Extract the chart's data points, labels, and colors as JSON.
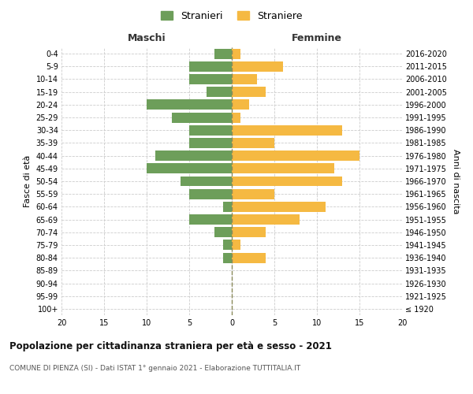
{
  "age_groups": [
    "100+",
    "95-99",
    "90-94",
    "85-89",
    "80-84",
    "75-79",
    "70-74",
    "65-69",
    "60-64",
    "55-59",
    "50-54",
    "45-49",
    "40-44",
    "35-39",
    "30-34",
    "25-29",
    "20-24",
    "15-19",
    "10-14",
    "5-9",
    "0-4"
  ],
  "birth_years": [
    "≤ 1920",
    "1921-1925",
    "1926-1930",
    "1931-1935",
    "1936-1940",
    "1941-1945",
    "1946-1950",
    "1951-1955",
    "1956-1960",
    "1961-1965",
    "1966-1970",
    "1971-1975",
    "1976-1980",
    "1981-1985",
    "1986-1990",
    "1991-1995",
    "1996-2000",
    "2001-2005",
    "2006-2010",
    "2011-2015",
    "2016-2020"
  ],
  "males": [
    0,
    0,
    0,
    0,
    1,
    1,
    2,
    5,
    1,
    5,
    6,
    10,
    9,
    5,
    5,
    7,
    10,
    3,
    5,
    5,
    2
  ],
  "females": [
    0,
    0,
    0,
    0,
    4,
    1,
    4,
    8,
    11,
    5,
    13,
    12,
    15,
    5,
    13,
    1,
    2,
    4,
    3,
    6,
    1
  ],
  "male_color": "#6d9e5a",
  "female_color": "#f5b942",
  "center_line_color": "#8a8a5a",
  "grid_color": "#cccccc",
  "background_color": "#ffffff",
  "title": "Popolazione per cittadinanza straniera per età e sesso - 2021",
  "subtitle": "COMUNE DI PIENZA (SI) - Dati ISTAT 1° gennaio 2021 - Elaborazione TUTTITALIA.IT",
  "ylabel_left": "Fasce di età",
  "ylabel_right": "Anni di nascita",
  "xlabel_left": "Maschi",
  "xlabel_right": "Femmine",
  "legend_male": "Stranieri",
  "legend_female": "Straniere",
  "xlim": 20,
  "bar_height": 0.8
}
